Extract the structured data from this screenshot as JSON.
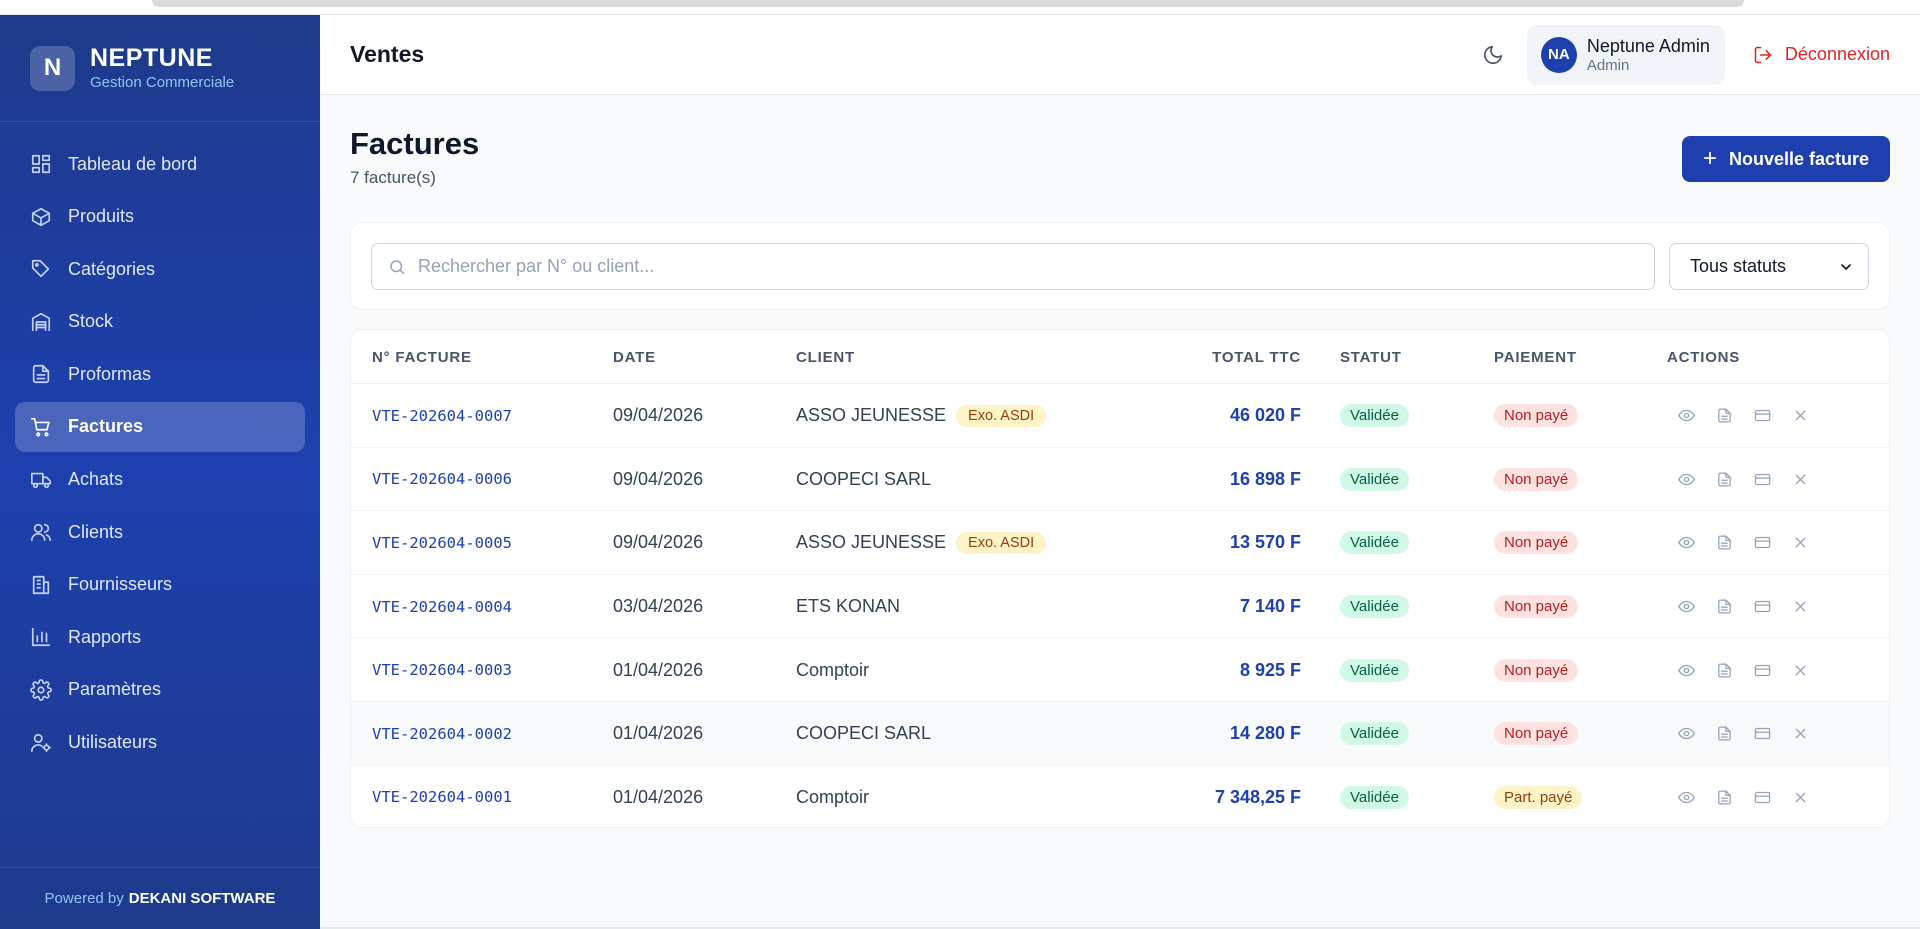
{
  "brand": {
    "logo_letter": "N",
    "name": "NEPTUNE",
    "subtitle": "Gestion Commerciale"
  },
  "sidebar": {
    "items": [
      {
        "label": "Tableau de bord",
        "icon": "dashboard-icon",
        "active": false
      },
      {
        "label": "Produits",
        "icon": "box-icon",
        "active": false
      },
      {
        "label": "Catégories",
        "icon": "tag-icon",
        "active": false
      },
      {
        "label": "Stock",
        "icon": "warehouse-icon",
        "active": false
      },
      {
        "label": "Proformas",
        "icon": "document-icon",
        "active": false
      },
      {
        "label": "Factures",
        "icon": "cart-icon",
        "active": true
      },
      {
        "label": "Achats",
        "icon": "truck-icon",
        "active": false
      },
      {
        "label": "Clients",
        "icon": "users-icon",
        "active": false
      },
      {
        "label": "Fournisseurs",
        "icon": "building-icon",
        "active": false
      },
      {
        "label": "Rapports",
        "icon": "bar-chart-icon",
        "active": false
      },
      {
        "label": "Paramètres",
        "icon": "gear-icon",
        "active": false
      },
      {
        "label": "Utilisateurs",
        "icon": "user-cog-icon",
        "active": false
      }
    ],
    "footer_prefix": "Powered by",
    "footer_brand": "DEKANI SOFTWARE"
  },
  "header": {
    "title": "Ventes",
    "user_initials": "NA",
    "user_name": "Neptune Admin",
    "user_role": "Admin",
    "logout_label": "Déconnexion"
  },
  "main": {
    "title": "Factures",
    "count": "7 facture(s)",
    "new_button": "Nouvelle facture",
    "search_placeholder": "Rechercher par N° ou client...",
    "status_filter": "Tous statuts"
  },
  "table": {
    "headers": [
      "N° FACTURE",
      "DATE",
      "CLIENT",
      "TOTAL TTC",
      "STATUT",
      "PAIEMENT",
      "ACTIONS"
    ],
    "rows": [
      {
        "numero": "VTE-202604-0007",
        "date": "09/04/2026",
        "client": "ASSO JEUNESSE",
        "exo": "Exo. ASDI",
        "total": "46 020 F",
        "statut": "Validée",
        "paiement": "Non payé",
        "paiement_type": "red"
      },
      {
        "numero": "VTE-202604-0006",
        "date": "09/04/2026",
        "client": "COOPECI SARL",
        "exo": "",
        "total": "16 898 F",
        "statut": "Validée",
        "paiement": "Non payé",
        "paiement_type": "red"
      },
      {
        "numero": "VTE-202604-0005",
        "date": "09/04/2026",
        "client": "ASSO JEUNESSE",
        "exo": "Exo. ASDI",
        "total": "13 570 F",
        "statut": "Validée",
        "paiement": "Non payé",
        "paiement_type": "red"
      },
      {
        "numero": "VTE-202604-0004",
        "date": "03/04/2026",
        "client": "ETS KONAN",
        "exo": "",
        "total": "7 140 F",
        "statut": "Validée",
        "paiement": "Non payé",
        "paiement_type": "red"
      },
      {
        "numero": "VTE-202604-0003",
        "date": "01/04/2026",
        "client": "Comptoir",
        "exo": "",
        "total": "8 925 F",
        "statut": "Validée",
        "paiement": "Non payé",
        "paiement_type": "red"
      },
      {
        "numero": "VTE-202604-0002",
        "date": "01/04/2026",
        "client": "COOPECI SARL",
        "exo": "",
        "total": "14 280 F",
        "statut": "Validée",
        "paiement": "Non payé",
        "paiement_type": "red"
      },
      {
        "numero": "VTE-202604-0001",
        "date": "01/04/2026",
        "client": "Comptoir",
        "exo": "",
        "total": "7 348,25 F",
        "statut": "Validée",
        "paiement": "Part. payé",
        "paiement_type": "yellow"
      }
    ]
  },
  "colors": {
    "primary": "#1e40af",
    "sidebar": "#1e3a8a",
    "danger": "#dc2626",
    "success_bg": "#d1fae5",
    "warning_bg": "#fef3c7"
  }
}
